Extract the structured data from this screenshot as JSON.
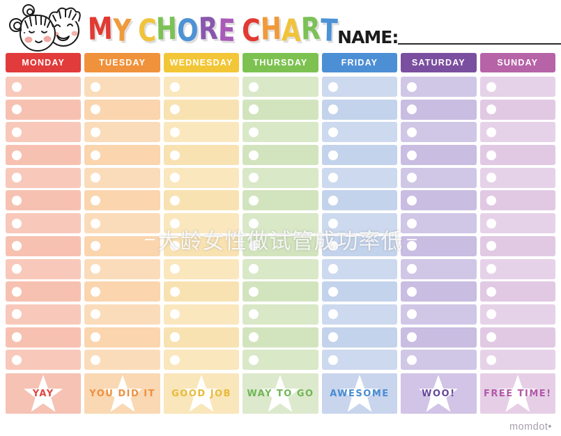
{
  "header": {
    "kids_icon": "girl-and-boy-faces",
    "title_text": "MY CHORE CHART",
    "title_letters": [
      {
        "ch": "M",
        "color": "#e23a33"
      },
      {
        "ch": "Y",
        "color": "#f09a3c"
      },
      {
        "ch": " ",
        "color": ""
      },
      {
        "ch": "C",
        "color": "#f1c33c"
      },
      {
        "ch": "H",
        "color": "#7cc156"
      },
      {
        "ch": "O",
        "color": "#4d92d5"
      },
      {
        "ch": "R",
        "color": "#8a57ae"
      },
      {
        "ch": "E",
        "color": "#a85ab9"
      },
      {
        "ch": " ",
        "color": ""
      },
      {
        "ch": "C",
        "color": "#e23a33"
      },
      {
        "ch": "H",
        "color": "#f09a3c"
      },
      {
        "ch": "A",
        "color": "#f1c33c"
      },
      {
        "ch": "R",
        "color": "#7cc156"
      },
      {
        "ch": "T",
        "color": "#4d92d5"
      }
    ],
    "name_label": "NAME:",
    "name_value": ""
  },
  "watermark": {
    "text": "大龄女性做试管成功率低"
  },
  "table": {
    "rows_per_column": 13,
    "columns": [
      {
        "day": "MONDAY",
        "header_color": "#e13b3b",
        "cell_color": "#f8c9ba",
        "cell_alt_color": "#f7c1b1",
        "footer_color": "#f5c2b4",
        "reward_label": "YAY",
        "reward_color": "#e0473f"
      },
      {
        "day": "TUESDAY",
        "header_color": "#f0923b",
        "cell_color": "#fbdcba",
        "cell_alt_color": "#fad5ae",
        "footer_color": "#f9d8b3",
        "reward_label": "YOU DID IT",
        "reward_color": "#ee9140"
      },
      {
        "day": "WEDNESDAY",
        "header_color": "#f2c636",
        "cell_color": "#fae7bd",
        "cell_alt_color": "#f9e2b2",
        "footer_color": "#f9e6ba",
        "reward_label": "GOOD JOB",
        "reward_color": "#e8ba3a"
      },
      {
        "day": "THURSDAY",
        "header_color": "#7dc251",
        "cell_color": "#d9e8c7",
        "cell_alt_color": "#d2e4bd",
        "footer_color": "#dde9cd",
        "reward_label": "WAY TO GO",
        "reward_color": "#70b656"
      },
      {
        "day": "FRIDAY",
        "header_color": "#4d8fd5",
        "cell_color": "#ccd9ee",
        "cell_alt_color": "#c4d3ec",
        "footer_color": "#c9d5ed",
        "reward_label": "AWESOME",
        "reward_color": "#4a8cd2"
      },
      {
        "day": "SATURDAY",
        "header_color": "#7b4fa0",
        "cell_color": "#d0c7e6",
        "cell_alt_color": "#c9bde2",
        "footer_color": "#d1c4e6",
        "reward_label": "WOO!",
        "reward_color": "#66489a"
      },
      {
        "day": "SUNDAY",
        "header_color": "#b763a8",
        "cell_color": "#e6d2e8",
        "cell_alt_color": "#e1c9e4",
        "footer_color": "#e6cfe6",
        "reward_label": "FREE TIME!",
        "reward_color": "#b159a8"
      }
    ]
  },
  "footer": {
    "brand": "momdot•"
  }
}
